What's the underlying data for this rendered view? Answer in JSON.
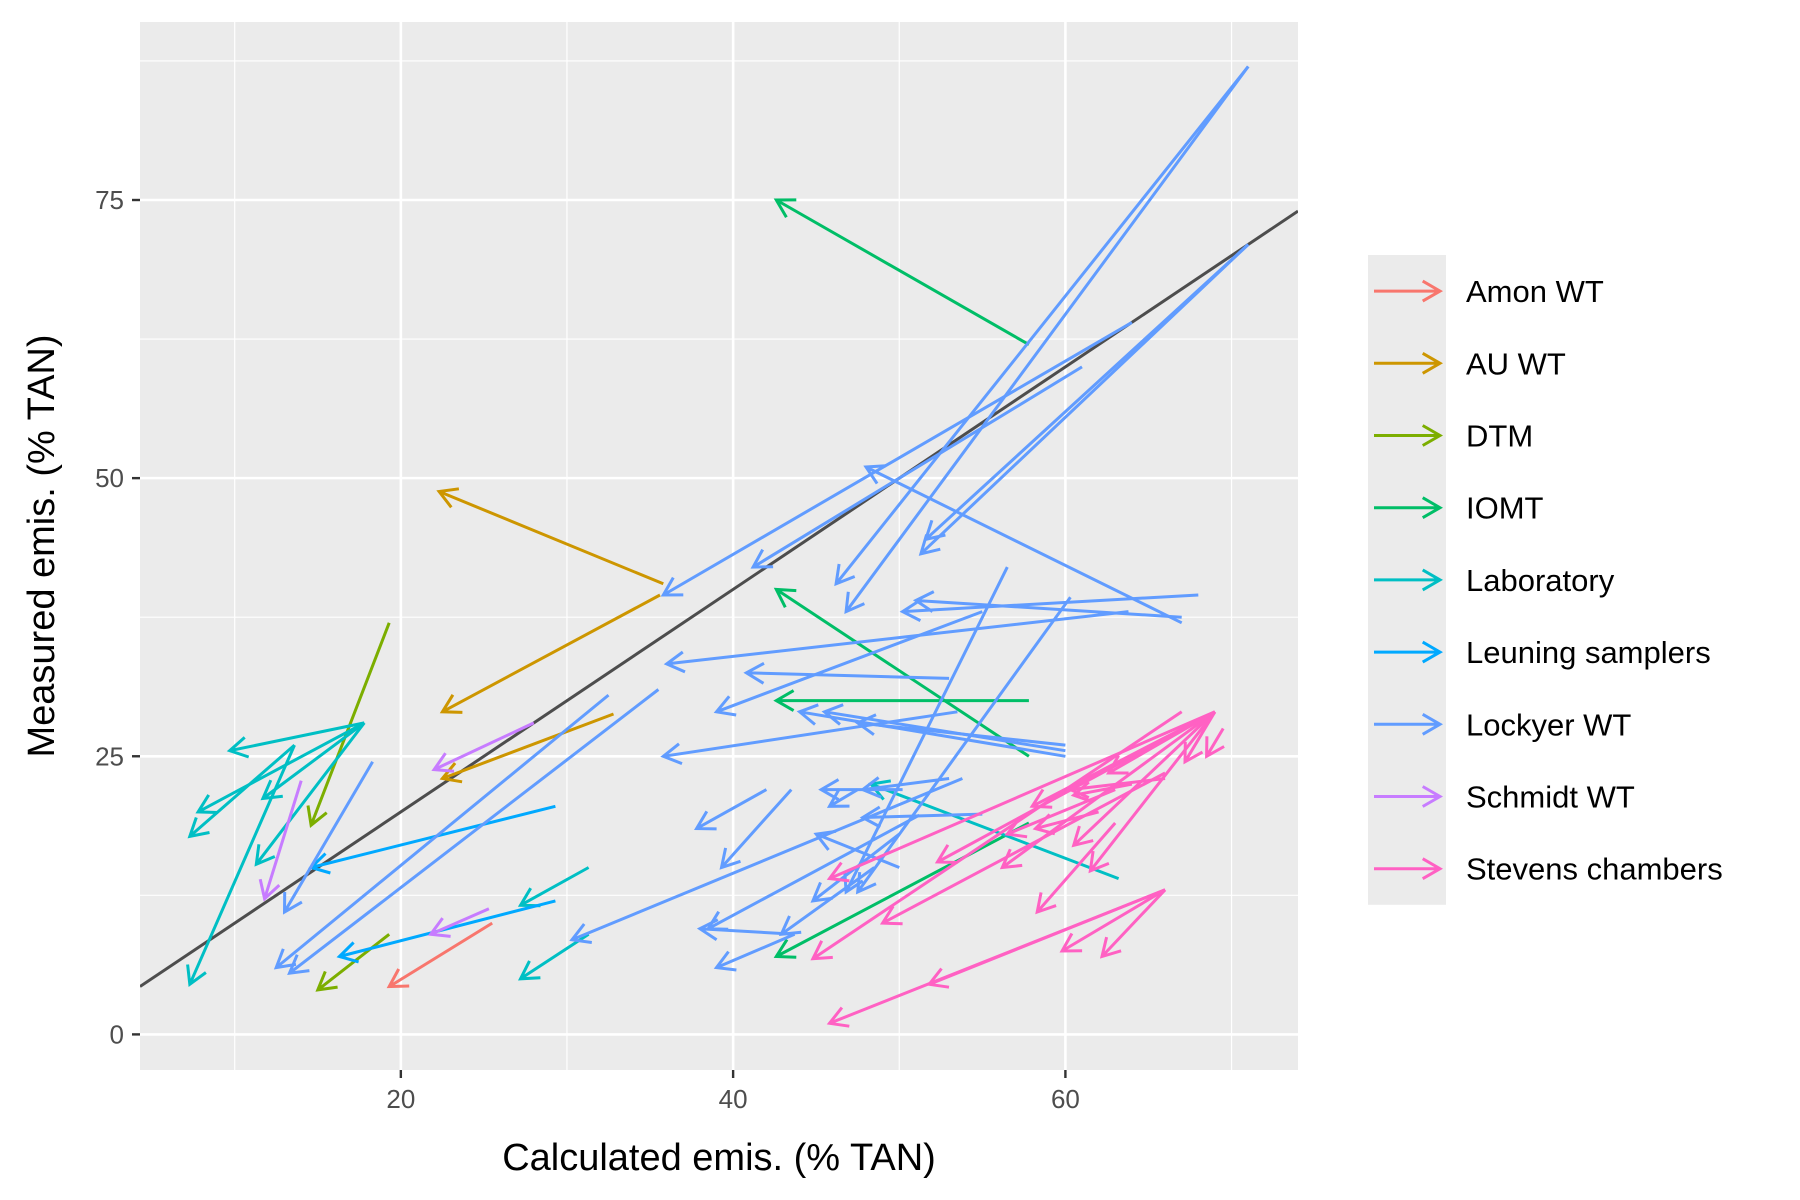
{
  "chart_data": {
    "type": "arrow-scatter",
    "title": "",
    "xlabel": "Calculated emis. (% TAN)",
    "ylabel": "Measured emis. (% TAN)",
    "xlim": [
      4.3,
      74
    ],
    "ylim": [
      -3.2,
      91
    ],
    "x_ticks": [
      20,
      40,
      60
    ],
    "y_ticks": [
      0,
      25,
      50,
      75
    ],
    "grid": true,
    "legend_position": "right",
    "reference_line": {
      "slope": 1,
      "intercept": 0
    },
    "series": [
      {
        "name": "Amon WT",
        "color": "#F8766D",
        "arrows": [
          [
            25.5,
            10.0,
            19.3,
            4.3
          ]
        ]
      },
      {
        "name": "AU WT",
        "color": "#CD9600",
        "arrows": [
          [
            35.8,
            40.5,
            22.3,
            48.8
          ],
          [
            35.6,
            39.5,
            22.5,
            29.0
          ],
          [
            32.8,
            28.8,
            22.5,
            23.0
          ]
        ]
      },
      {
        "name": "DTM",
        "color": "#7CAE00",
        "arrows": [
          [
            19.3,
            37.0,
            14.6,
            18.8
          ],
          [
            19.3,
            9.0,
            15.0,
            4.0
          ]
        ]
      },
      {
        "name": "IOMT",
        "color": "#00BE67",
        "arrows": [
          [
            57.8,
            62.0,
            42.6,
            75.0
          ],
          [
            57.8,
            25.0,
            42.6,
            40.0
          ],
          [
            57.8,
            30.0,
            42.6,
            30.0
          ],
          [
            57.8,
            19.0,
            42.6,
            7.0
          ]
        ]
      },
      {
        "name": "Laboratory",
        "color": "#00BFC4",
        "arrows": [
          [
            17.8,
            28.0,
            9.7,
            25.5
          ],
          [
            17.8,
            28.0,
            7.8,
            20.0
          ],
          [
            17.8,
            28.0,
            11.7,
            21.2
          ],
          [
            17.8,
            28.0,
            11.3,
            15.3
          ],
          [
            13.6,
            26.0,
            7.3,
            17.8
          ],
          [
            13.6,
            26.0,
            7.3,
            4.5
          ],
          [
            31.3,
            15.0,
            27.2,
            11.6
          ],
          [
            31.3,
            9.0,
            27.2,
            5.0
          ],
          [
            63.2,
            14.0,
            48.3,
            22.5
          ]
        ]
      },
      {
        "name": "Leuning samplers",
        "color": "#00A9FF",
        "arrows": [
          [
            29.3,
            20.5,
            14.6,
            15.0
          ],
          [
            29.3,
            12.0,
            16.3,
            7.0
          ]
        ]
      },
      {
        "name": "Lockyer WT",
        "color": "#619CFF",
        "arrows": [
          [
            71.0,
            87.0,
            46.2,
            40.5
          ],
          [
            71.0,
            87.0,
            46.8,
            38.0
          ],
          [
            71.0,
            71.0,
            51.3,
            43.2
          ],
          [
            71.0,
            71.0,
            51.6,
            44.5
          ],
          [
            64.0,
            64.0,
            35.8,
            39.5
          ],
          [
            61.0,
            60.0,
            41.2,
            42.0
          ],
          [
            67.0,
            37.0,
            48.0,
            51.0
          ],
          [
            68.0,
            39.5,
            50.2,
            38.0
          ],
          [
            67.0,
            37.5,
            51.0,
            39.0
          ],
          [
            63.8,
            38.0,
            36.0,
            33.3
          ],
          [
            60.3,
            39.3,
            47.5,
            12.8
          ],
          [
            56.5,
            42.0,
            46.8,
            12.8
          ],
          [
            55.0,
            38.0,
            39.0,
            29.0
          ],
          [
            53.0,
            32.0,
            40.8,
            32.5
          ],
          [
            53.5,
            29.0,
            35.8,
            25.0
          ],
          [
            60.0,
            25.0,
            44.0,
            29.0
          ],
          [
            60.0,
            25.5,
            45.5,
            29.0
          ],
          [
            60.0,
            26.0,
            47.5,
            28.0
          ],
          [
            53.0,
            23.0,
            47.8,
            22.0
          ],
          [
            55.0,
            19.8,
            47.8,
            19.5
          ],
          [
            53.8,
            23.0,
            30.3,
            8.5
          ],
          [
            51.2,
            19.7,
            38.5,
            9.5
          ],
          [
            50.0,
            18.0,
            44.8,
            12.0
          ],
          [
            50.0,
            15.0,
            45.0,
            18.0
          ],
          [
            48.5,
            15.0,
            42.9,
            9.0
          ],
          [
            43.5,
            22.0,
            39.3,
            15.0
          ],
          [
            42.0,
            22.0,
            37.8,
            18.5
          ],
          [
            50.2,
            22.0,
            45.3,
            22.0
          ],
          [
            47.5,
            22.0,
            45.8,
            20.5
          ],
          [
            43.7,
            9.0,
            38.0,
            9.5
          ],
          [
            43.7,
            9.0,
            39.0,
            6.0
          ],
          [
            35.5,
            31.0,
            13.3,
            5.5
          ],
          [
            32.5,
            30.5,
            12.5,
            6.0
          ],
          [
            18.3,
            24.5,
            13.0,
            11.0
          ]
        ]
      },
      {
        "name": "Schmidt WT",
        "color": "#C77CFF",
        "arrows": [
          [
            28.0,
            28.0,
            22.0,
            23.8
          ],
          [
            14.0,
            22.8,
            11.8,
            12.2
          ],
          [
            25.3,
            11.3,
            21.8,
            9.0
          ]
        ]
      },
      {
        "name": "Stevens chambers",
        "color": "#FF61C3",
        "arrows": [
          [
            69.0,
            29.0,
            45.8,
            14.0
          ],
          [
            69.0,
            29.0,
            52.3,
            15.5
          ],
          [
            69.0,
            29.0,
            56.2,
            15.0
          ],
          [
            69.0,
            29.0,
            58.0,
            20.5
          ],
          [
            69.0,
            29.0,
            60.5,
            17.0
          ],
          [
            69.0,
            29.0,
            62.6,
            23.5
          ],
          [
            69.0,
            29.0,
            67.2,
            24.5
          ],
          [
            69.0,
            29.0,
            61.5,
            14.7
          ],
          [
            67.0,
            29.0,
            44.8,
            6.8
          ],
          [
            66.0,
            23.5,
            49.0,
            10.0
          ],
          [
            63.0,
            22.0,
            56.5,
            18.0
          ],
          [
            63.0,
            19.0,
            58.3,
            11.0
          ],
          [
            66.0,
            23.0,
            60.3,
            22.0
          ],
          [
            62.0,
            20.0,
            58.2,
            18.5
          ],
          [
            64.0,
            22.5,
            60.5,
            21.5
          ],
          [
            66.0,
            13.0,
            45.8,
            1.0
          ],
          [
            66.0,
            13.0,
            51.8,
            4.5
          ],
          [
            66.0,
            13.0,
            59.8,
            7.5
          ],
          [
            66.0,
            13.0,
            62.2,
            7.0
          ],
          [
            69.5,
            27.5,
            68.5,
            25.0
          ]
        ]
      }
    ]
  }
}
